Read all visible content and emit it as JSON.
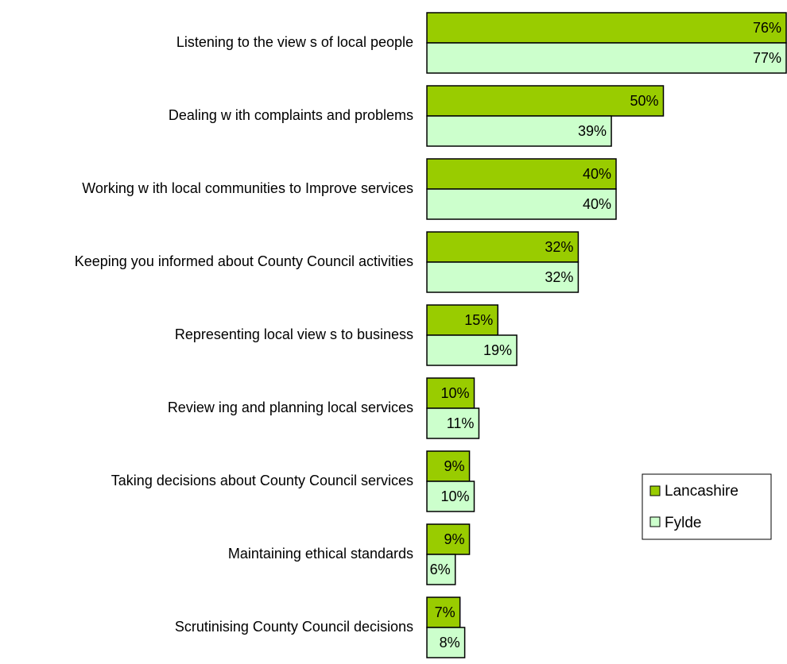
{
  "chart_data": {
    "type": "bar",
    "orientation": "horizontal",
    "categories": [
      "Listening to the view s of local people",
      "Dealing w ith complaints and problems",
      "Working w ith local communities to Improve services",
      "Keeping you informed about County Council activities",
      "Representing local view s to business",
      "Review ing and planning local services",
      "Taking decisions about County Council services",
      "Maintaining ethical standards",
      "Scrutinising County Council decisions"
    ],
    "series": [
      {
        "name": "Lancashire",
        "color": "#99CC00",
        "values": [
          76,
          50,
          40,
          32,
          15,
          10,
          9,
          9,
          7
        ],
        "labels": [
          "76%",
          "50%",
          "40%",
          "32%",
          "15%",
          "10%",
          "9%",
          "9%",
          "7%"
        ]
      },
      {
        "name": "Fylde",
        "color": "#CCFFCC",
        "values": [
          77,
          39,
          40,
          32,
          19,
          11,
          10,
          6,
          8
        ],
        "labels": [
          "77%",
          "39%",
          "40%",
          "32%",
          "19%",
          "11%",
          "10%",
          "6%",
          "8%"
        ]
      }
    ],
    "xlim": [
      0,
      75
    ],
    "grid": false,
    "legend_position": "right"
  }
}
